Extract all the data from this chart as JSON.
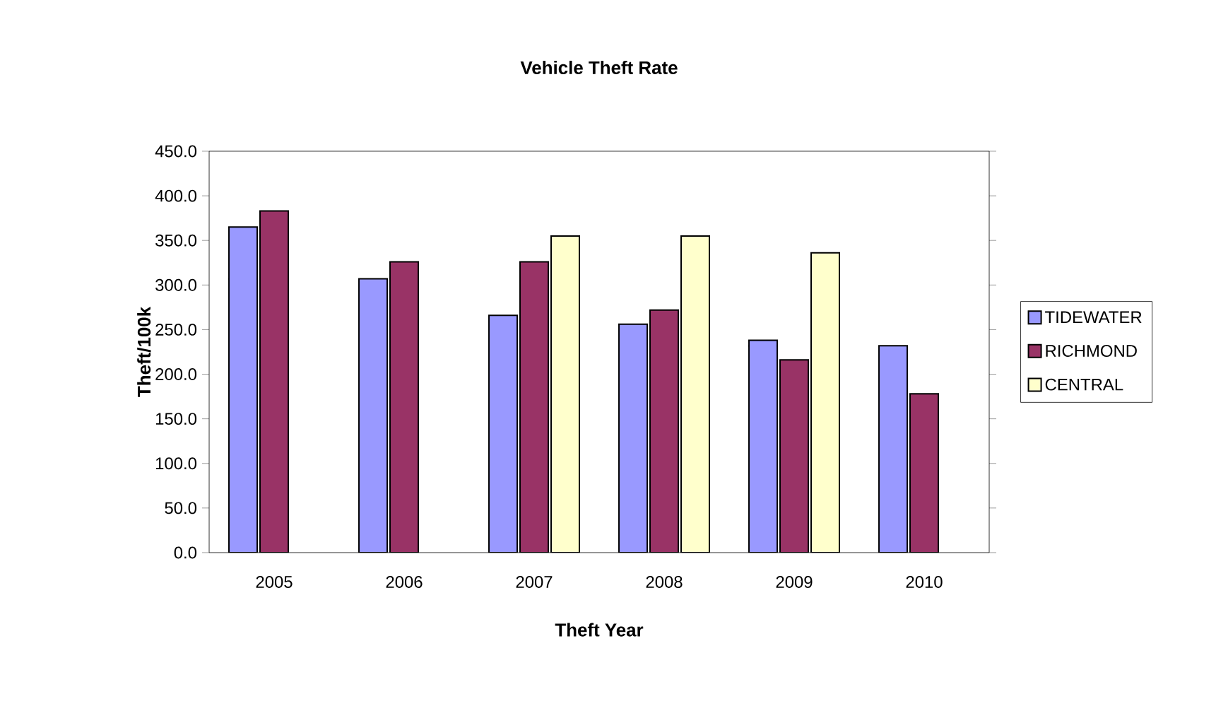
{
  "chart_data": {
    "type": "bar",
    "title": "Vehicle Theft Rate",
    "xlabel": "Theft Year",
    "ylabel": "Theft/100k",
    "categories": [
      "2005",
      "2006",
      "2007",
      "2008",
      "2009",
      "2010"
    ],
    "series": [
      {
        "name": "TIDEWATER",
        "color": "#9999ff",
        "values": [
          365,
          307,
          266,
          256,
          238,
          232
        ]
      },
      {
        "name": "RICHMOND",
        "color": "#993366",
        "values": [
          383,
          326,
          326,
          272,
          216,
          178
        ]
      },
      {
        "name": "CENTRAL",
        "color": "#ffffcc",
        "values": [
          null,
          null,
          355,
          355,
          336,
          null
        ]
      }
    ],
    "ylim": [
      0,
      450
    ],
    "yticks": [
      {
        "value": 0,
        "label": "0.0"
      },
      {
        "value": 50,
        "label": "50.0"
      },
      {
        "value": 100,
        "label": "100.0"
      },
      {
        "value": 150,
        "label": "150.0"
      },
      {
        "value": 200,
        "label": "200.0"
      },
      {
        "value": 250,
        "label": "250.0"
      },
      {
        "value": 300,
        "label": "300.0"
      },
      {
        "value": 350,
        "label": "350.0"
      },
      {
        "value": 400,
        "label": "400.0"
      },
      {
        "value": 450,
        "label": "450.0"
      }
    ],
    "grid": false,
    "legend": "right"
  }
}
